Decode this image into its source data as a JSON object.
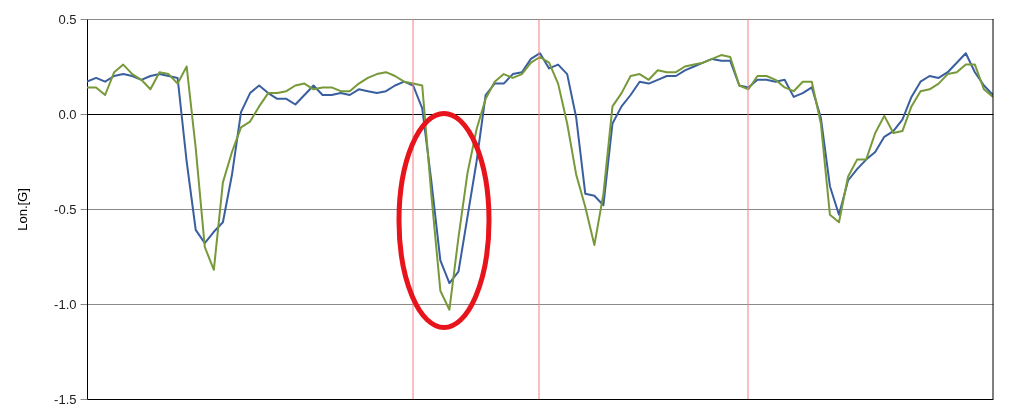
{
  "chart_data": {
    "type": "line",
    "ylabel": "Lon.[G]",
    "ylim": [
      -1.5,
      0.5
    ],
    "yticks": [
      {
        "value": -1.5,
        "label": "-1.5"
      },
      {
        "value": -1.0,
        "label": "-1.0"
      },
      {
        "value": -0.5,
        "label": "-0.5"
      },
      {
        "value": 0,
        "label": "0.0"
      },
      {
        "value": 0.5,
        "label": "0.5"
      }
    ],
    "grid": "y",
    "tick_labels": "y",
    "categories": [
      null,
      null,
      null,
      null,
      null,
      null,
      null,
      null,
      null,
      null,
      null,
      null,
      null,
      null,
      null,
      null,
      null,
      null,
      null,
      null,
      null,
      null,
      null,
      null,
      null,
      null,
      null,
      null,
      null,
      null,
      null,
      null,
      null,
      null,
      null,
      null,
      null,
      null,
      null,
      null,
      null,
      null,
      null,
      null,
      null,
      null,
      null,
      null,
      null,
      null,
      null,
      null,
      null,
      null,
      null,
      null,
      null,
      null,
      null,
      null,
      null,
      null,
      null,
      null,
      null,
      null,
      null,
      null,
      null,
      null,
      null,
      null,
      null,
      null,
      null,
      null,
      null,
      null,
      null,
      null,
      null,
      null,
      null,
      null,
      null,
      null,
      null,
      null,
      null,
      null,
      null,
      null,
      null,
      null,
      null,
      null,
      null,
      null,
      null,
      null,
      null
    ],
    "series": [
      {
        "color": "#3a5f9f",
        "values": [
          0.17,
          0.19,
          0.17,
          0.2,
          0.21,
          0.2,
          0.18,
          0.2,
          0.21,
          0.2,
          0.19,
          -0.25,
          -0.61,
          -0.68,
          -0.62,
          -0.57,
          -0.32,
          0.01,
          0.11,
          0.15,
          0.11,
          0.08,
          0.08,
          0.05,
          0.1,
          0.15,
          0.1,
          0.1,
          0.11,
          0.1,
          0.13,
          0.12,
          0.11,
          0.12,
          0.15,
          0.17,
          0.15,
          0.03,
          -0.35,
          -0.77,
          -0.89,
          -0.83,
          -0.54,
          -0.25,
          0.1,
          0.16,
          0.16,
          0.21,
          0.22,
          0.29,
          0.32,
          0.24,
          0.26,
          0.21,
          -0.02,
          -0.42,
          -0.43,
          -0.48,
          -0.05,
          0.04,
          0.1,
          0.17,
          0.16,
          0.18,
          0.2,
          0.2,
          0.23,
          0.25,
          0.27,
          0.29,
          0.28,
          0.28,
          0.15,
          0.14,
          0.18,
          0.18,
          0.17,
          0.18,
          0.09,
          0.11,
          0.14,
          -0.02,
          -0.38,
          -0.53,
          -0.35,
          -0.29,
          -0.24,
          -0.2,
          -0.12,
          -0.09,
          -0.03,
          0.09,
          0.17,
          0.2,
          0.19,
          0.22,
          0.27,
          0.32,
          0.22,
          0.15,
          0.1
        ]
      },
      {
        "color": "#77993a",
        "values": [
          0.14,
          0.14,
          0.1,
          0.22,
          0.26,
          0.21,
          0.18,
          0.13,
          0.22,
          0.21,
          0.16,
          0.25,
          -0.18,
          -0.7,
          -0.82,
          -0.36,
          -0.2,
          -0.07,
          -0.04,
          0.04,
          0.11,
          0.11,
          0.12,
          0.15,
          0.16,
          0.13,
          0.14,
          0.14,
          0.12,
          0.12,
          0.16,
          0.19,
          0.21,
          0.22,
          0.2,
          0.17,
          0.16,
          0.15,
          -0.42,
          -0.93,
          -1.03,
          -0.65,
          -0.31,
          -0.08,
          0.08,
          0.17,
          0.21,
          0.19,
          0.21,
          0.27,
          0.3,
          0.27,
          0.16,
          -0.05,
          -0.32,
          -0.49,
          -0.69,
          -0.42,
          0.04,
          0.11,
          0.2,
          0.21,
          0.18,
          0.23,
          0.22,
          0.22,
          0.25,
          0.26,
          0.27,
          0.29,
          0.31,
          0.3,
          0.15,
          0.13,
          0.2,
          0.2,
          0.18,
          0.14,
          0.12,
          0.17,
          0.17,
          -0.05,
          -0.53,
          -0.57,
          -0.33,
          -0.24,
          -0.24,
          -0.1,
          -0.01,
          -0.1,
          -0.09,
          0.04,
          0.12,
          0.13,
          0.16,
          0.21,
          0.22,
          0.26,
          0.26,
          0.13,
          0.09
        ]
      }
    ]
  }
}
